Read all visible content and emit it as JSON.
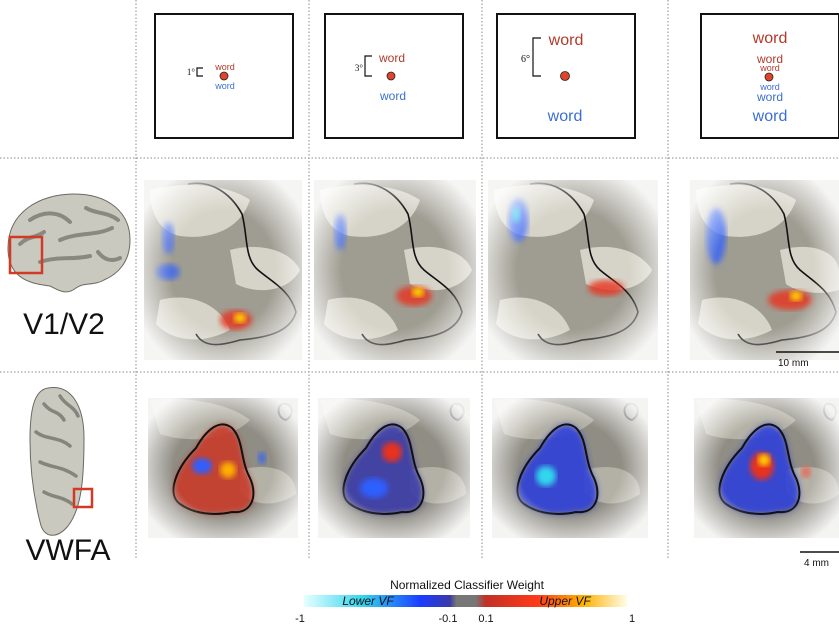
{
  "stimuli": [
    {
      "bracket_label": "1°",
      "word_upper": "word",
      "word_lower": "word"
    },
    {
      "bracket_label": "3°",
      "word_upper": "word",
      "word_lower": "word"
    },
    {
      "bracket_label": "6°",
      "word_upper": "word",
      "word_lower": "word"
    },
    {
      "words": [
        "word",
        "word",
        "word",
        "word",
        "word",
        "word"
      ]
    }
  ],
  "rows": [
    {
      "label": "V1/V2",
      "scale_bar": "10 mm"
    },
    {
      "label": "VWFA",
      "scale_bar": "4 mm"
    }
  ],
  "colorbar": {
    "title": "Normalized Classifier Weight",
    "lower_label": "Lower VF",
    "upper_label": "Upper VF",
    "ticks": [
      "-1",
      "-0.1",
      "0.1",
      "1"
    ]
  },
  "colors": {
    "word_red": "#b23a2a",
    "word_blue": "#3b6fd0",
    "fixation": "#e0442a",
    "roi_box": "#d23a26",
    "grid": "#8a8a8a"
  }
}
